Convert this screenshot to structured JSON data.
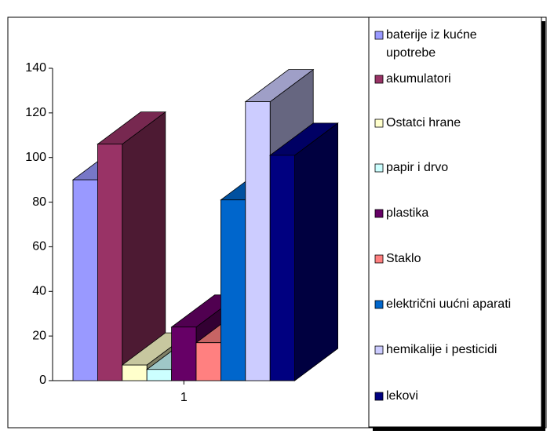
{
  "chart_data": {
    "type": "bar3d",
    "categories": [
      "1"
    ],
    "series": [
      {
        "name": "baterije iz kućne upotrebe",
        "color": "#9999ff",
        "values": [
          90
        ]
      },
      {
        "name": "akumulatori",
        "color": "#993366",
        "values": [
          106
        ]
      },
      {
        "name": "Ostatci hrane",
        "color": "#ffffcc",
        "values": [
          7
        ]
      },
      {
        "name": "papir i drvo",
        "color": "#ccffff",
        "values": [
          5
        ]
      },
      {
        "name": "plastika",
        "color": "#660066",
        "values": [
          24
        ]
      },
      {
        "name": "Staklo",
        "color": "#ff8080",
        "values": [
          17
        ]
      },
      {
        "name": "električni uućni aparati",
        "color": "#0066cc",
        "values": [
          81
        ]
      },
      {
        "name": "hemikalije i pesticidi",
        "color": "#ccccff",
        "values": [
          125
        ]
      },
      {
        "name": "lekovi",
        "color": "#000080",
        "values": [
          101
        ]
      }
    ],
    "ylim": [
      0,
      140
    ],
    "yticks": [
      0,
      20,
      40,
      60,
      80,
      100,
      120,
      140
    ],
    "legend": "right"
  }
}
